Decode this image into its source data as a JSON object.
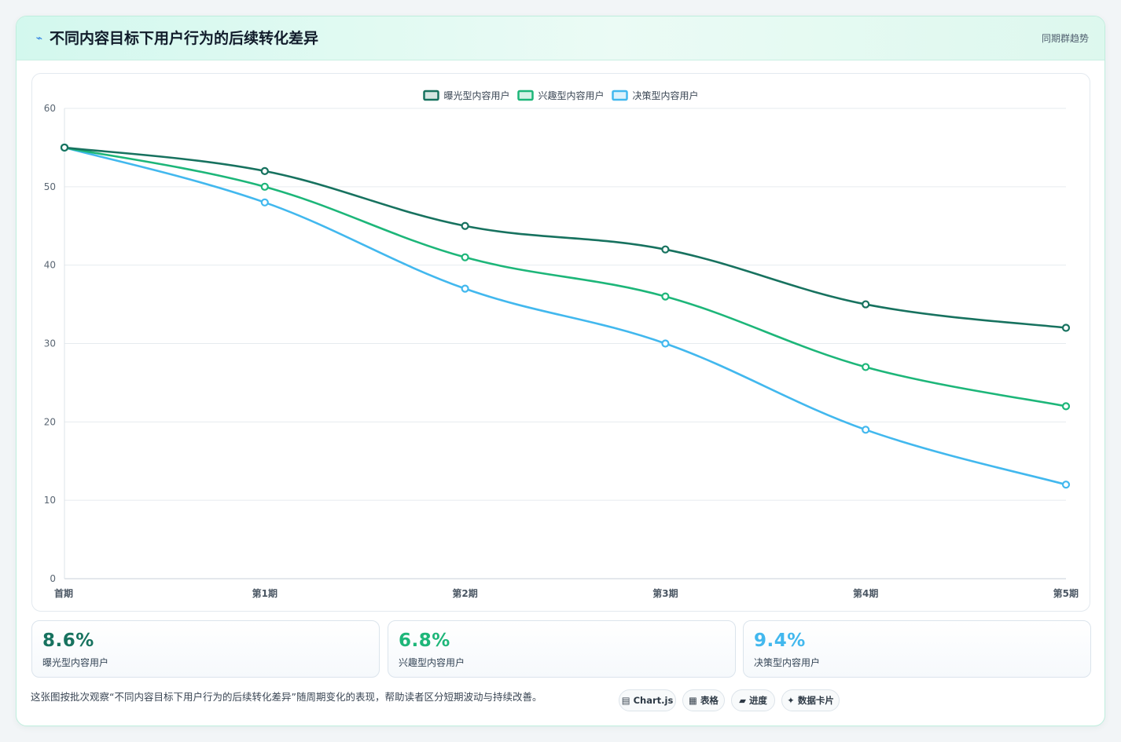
{
  "header": {
    "icon": "pulse-icon",
    "title": "不同内容目标下用户行为的后续转化差异",
    "link_label": "同期群趋势"
  },
  "chart_data": {
    "type": "line",
    "title": "",
    "xlabel": "",
    "ylabel": "",
    "categories": [
      "首期",
      "第1期",
      "第2期",
      "第3期",
      "第4期",
      "第5期"
    ],
    "ylim": [
      0,
      60
    ],
    "yticks": [
      0,
      10,
      20,
      30,
      40,
      50,
      60
    ],
    "grid": true,
    "legend_position": "top-center",
    "series": [
      {
        "name": "曝光型内容用户",
        "color": "#17725f",
        "values": [
          55,
          52,
          45,
          42,
          35,
          32
        ]
      },
      {
        "name": "兴趣型内容用户",
        "color": "#1db679",
        "values": [
          55,
          50,
          41,
          36,
          27,
          22
        ]
      },
      {
        "name": "决策型内容用户",
        "color": "#42b8ee",
        "values": [
          55,
          48,
          37,
          30,
          19,
          12
        ]
      }
    ]
  },
  "kpis": [
    {
      "value": "8.6%",
      "label": "曝光型内容用户",
      "color": "#17725f"
    },
    {
      "value": "6.8%",
      "label": "兴趣型内容用户",
      "color": "#1db679"
    },
    {
      "value": "9.4%",
      "label": "决策型内容用户",
      "color": "#42b8ee"
    }
  ],
  "footer": {
    "note": "这张图按批次观察“不同内容目标下用户行为的后续转化差异”随周期变化的表现，帮助读者区分短期波动与持续改善。",
    "tags": [
      {
        "icon": "chart-icon",
        "label": "Chart.js"
      },
      {
        "icon": "table-icon",
        "label": "表格"
      },
      {
        "icon": "progress-icon",
        "label": "进度"
      },
      {
        "icon": "sparkle-icon",
        "label": "数据卡片"
      }
    ]
  }
}
